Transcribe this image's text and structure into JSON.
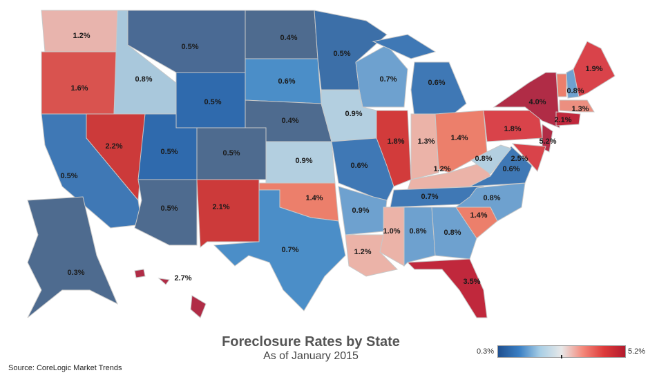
{
  "title": "Foreclosure Rates by State",
  "subtitle": "As of January 2015",
  "source": "Source: CoreLogic Market Trends",
  "legend": {
    "min": "0.3%",
    "max": "5.2%",
    "colors": [
      "#1f4f8f",
      "#3a7fc4",
      "#a9cfe6",
      "#e8e8e8",
      "#f4887a",
      "#dd3a3a",
      "#b31b2e"
    ]
  },
  "states": [
    {
      "id": "WA",
      "rate": "1.2%",
      "color": "#e8b4ad"
    },
    {
      "id": "OR",
      "rate": "1.6%",
      "color": "#d9534f"
    },
    {
      "id": "ID",
      "rate": "0.8%",
      "color": "#a9c8dc"
    },
    {
      "id": "MT",
      "rate": "0.5%",
      "color": "#4a6a94"
    },
    {
      "id": "ND",
      "rate": "0.4%",
      "color": "#4e6b8f"
    },
    {
      "id": "SD",
      "rate": "0.6%",
      "color": "#4b8ec8"
    },
    {
      "id": "WY",
      "rate": "0.5%",
      "color": "#2f6aad"
    },
    {
      "id": "NE",
      "rate": "0.4%",
      "color": "#4e6b8f"
    },
    {
      "id": "MN",
      "rate": "0.5%",
      "color": "#3c6fa8"
    },
    {
      "id": "WI",
      "rate": "0.7%",
      "color": "#6ea1cf"
    },
    {
      "id": "IA",
      "rate": "0.9%",
      "color": "#b3cfe0"
    },
    {
      "id": "MI",
      "rate": "0.6%",
      "color": "#3f78b5"
    },
    {
      "id": "IL",
      "rate": "1.8%",
      "color": "#d23b3b"
    },
    {
      "id": "IN",
      "rate": "1.3%",
      "color": "#ebb3a8"
    },
    {
      "id": "OH",
      "rate": "1.4%",
      "color": "#ec7f6b"
    },
    {
      "id": "KY",
      "rate": "1.2%",
      "color": "#ebb3a8"
    },
    {
      "id": "TN",
      "rate": "0.7%",
      "color": "#3f78b5"
    },
    {
      "id": "NV",
      "rate": "2.2%",
      "color": "#cc3a3a"
    },
    {
      "id": "CA",
      "rate": "0.5%",
      "color": "#3f78b5"
    },
    {
      "id": "UT",
      "rate": "0.5%",
      "color": "#2f6aad"
    },
    {
      "id": "CO",
      "rate": "0.5%",
      "color": "#4e6b8f"
    },
    {
      "id": "AZ",
      "rate": "0.5%",
      "color": "#4e6b8f"
    },
    {
      "id": "NM",
      "rate": "2.1%",
      "color": "#cc3a3a"
    },
    {
      "id": "KS",
      "rate": "0.9%",
      "color": "#b3cfe0"
    },
    {
      "id": "OK",
      "rate": "1.4%",
      "color": "#ec7f6b"
    },
    {
      "id": "TX",
      "rate": "0.7%",
      "color": "#4b8ec8"
    },
    {
      "id": "MO",
      "rate": "0.6%",
      "color": "#3f78b5"
    },
    {
      "id": "AR",
      "rate": "0.9%",
      "color": "#6ea1cf"
    },
    {
      "id": "LA",
      "rate": "1.2%",
      "color": "#ebb3a8"
    },
    {
      "id": "MS",
      "rate": "1.0%",
      "color": "#ebb3a8"
    },
    {
      "id": "AL",
      "rate": "0.8%",
      "color": "#6ea1cf"
    },
    {
      "id": "GA",
      "rate": "0.8%",
      "color": "#6ea1cf"
    },
    {
      "id": "FL",
      "rate": "3.5%",
      "color": "#c0283c"
    },
    {
      "id": "SC",
      "rate": "1.4%",
      "color": "#ec7f6b"
    },
    {
      "id": "NC",
      "rate": "0.8%",
      "color": "#6ea1cf"
    },
    {
      "id": "VA",
      "rate": "0.6%",
      "color": "#3f78b5"
    },
    {
      "id": "WV",
      "rate": "0.8%",
      "color": "#b3cfe0"
    },
    {
      "id": "PA",
      "rate": "1.8%",
      "color": "#d9434a"
    },
    {
      "id": "NY",
      "rate": "4.0%",
      "color": "#b02c46"
    },
    {
      "id": "NJ",
      "rate": "5.2%",
      "color": "#b02c46"
    },
    {
      "id": "MD",
      "rate": "2.5%",
      "color": "#d9434a"
    },
    {
      "id": "VT",
      "rate": "",
      "color": "#ec7f6b"
    },
    {
      "id": "NH",
      "rate": "0.8%",
      "color": "#6ea1cf"
    },
    {
      "id": "ME",
      "rate": "1.9%",
      "color": "#d9434a"
    },
    {
      "id": "MA",
      "rate": "1.3%",
      "color": "#ec8f80"
    },
    {
      "id": "CT",
      "rate": "2.1%",
      "color": "#c0283c"
    },
    {
      "id": "AK",
      "rate": "0.3%",
      "color": "#4e6b8f"
    },
    {
      "id": "HI",
      "rate": "2.7%",
      "color": "#b02c46"
    }
  ]
}
